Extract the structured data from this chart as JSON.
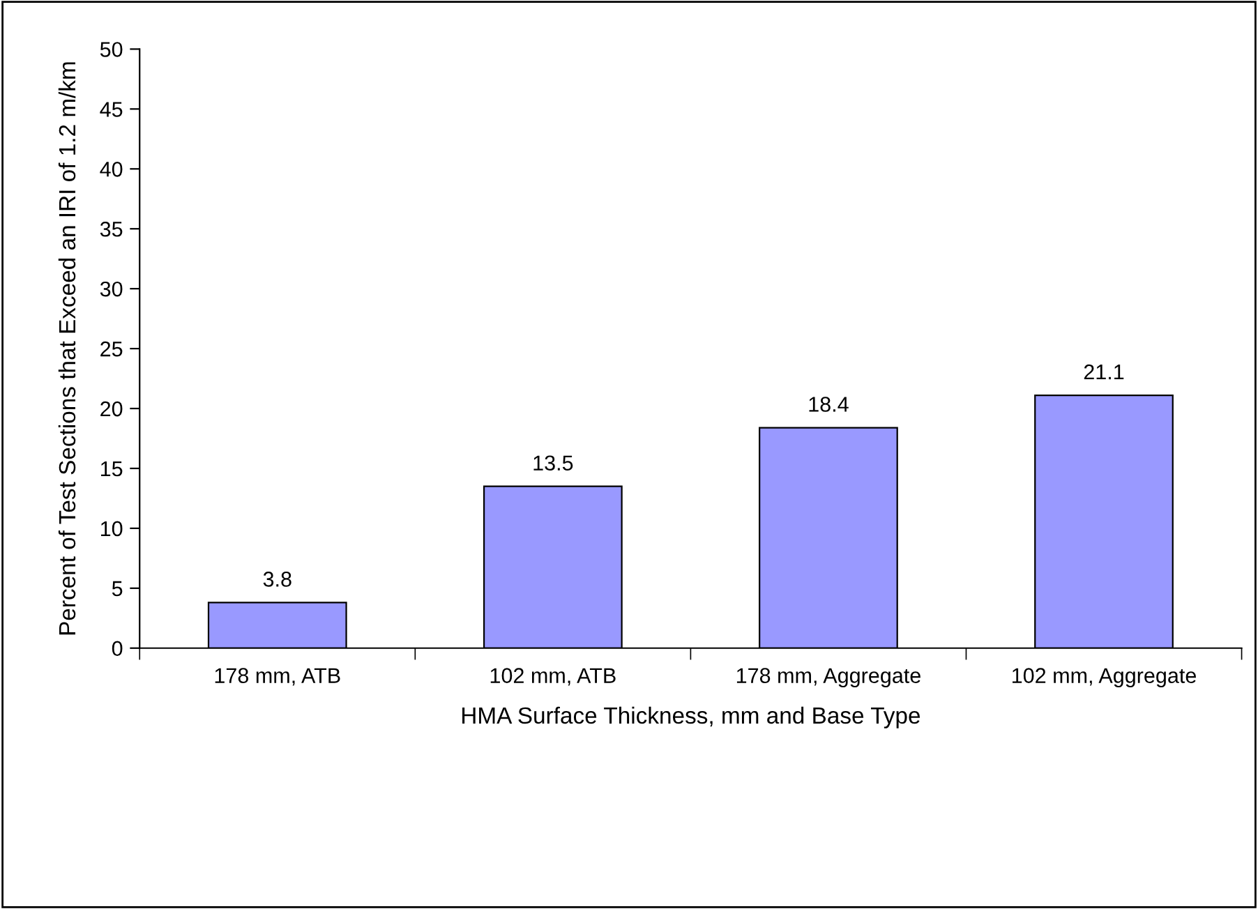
{
  "chart_data": {
    "type": "bar",
    "xlabel": "HMA Surface Thickness, mm and Base Type",
    "ylabel": "Percent of Test Sections that Exceed an IRI of 1.2 m/km",
    "categories": [
      "178 mm, ATB",
      "102 mm, ATB",
      "178 mm, Aggregate",
      "102 mm, Aggregate"
    ],
    "values": [
      3.8,
      13.5,
      18.4,
      21.1
    ],
    "color": "#9999ff",
    "ylim": [
      0,
      50
    ],
    "yticks": [
      0,
      5,
      10,
      15,
      20,
      25,
      30,
      35,
      40,
      45,
      50
    ],
    "grid": false,
    "data_labels": true
  }
}
